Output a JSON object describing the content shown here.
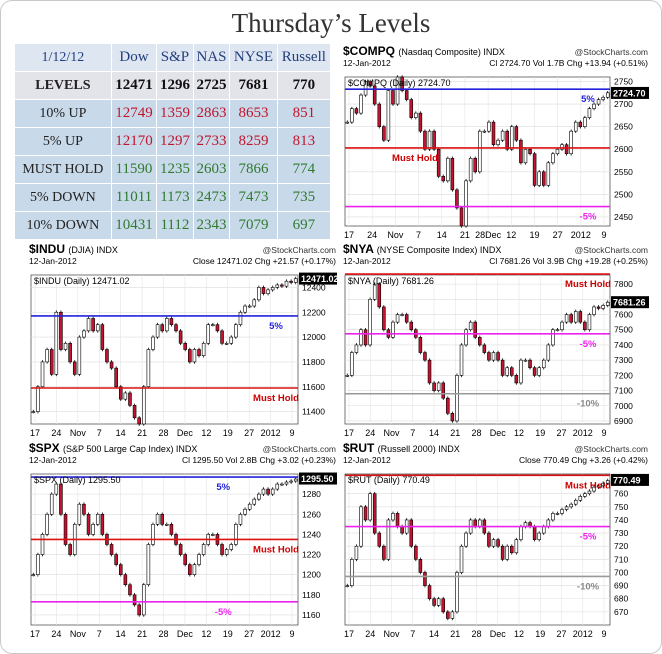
{
  "title": "Thursday’s Levels",
  "table": {
    "headers": [
      "1/12/12",
      "Dow",
      "S&P",
      "NAS",
      "NYSE",
      "Russell"
    ],
    "rows": [
      {
        "label": "LEVELS",
        "values": [
          "12471",
          "1296",
          "2725",
          "7681",
          "770"
        ]
      },
      {
        "label": "10% UP",
        "values": [
          "12749",
          "1359",
          "2863",
          "8653",
          "851"
        ]
      },
      {
        "label": "5% UP",
        "values": [
          "12170",
          "1297",
          "2733",
          "8259",
          "813"
        ]
      },
      {
        "label": "MUST HOLD",
        "values": [
          "11590",
          "1235",
          "2603",
          "7866",
          "774"
        ]
      },
      {
        "label": "5% DOWN",
        "values": [
          "11011",
          "1173",
          "2473",
          "7473",
          "735"
        ]
      },
      {
        "label": "10% DOWN",
        "values": [
          "10431",
          "1112",
          "2343",
          "7079",
          "697"
        ]
      }
    ]
  },
  "chart_data": [
    {
      "type": "candlestick",
      "symbol": "$COMPQ",
      "name": "(Nasdaq Composite)",
      "exchange": "INDX",
      "source": "@StockCharts.com",
      "date": "12-Jan-2012",
      "stats": "Cl 2724.70  Vol 1.7B  Chg +13.94 (+0.51%)",
      "legend": "$COMPQ (Daily) 2724.70",
      "last_label": "2724.70",
      "last": 2724.7,
      "ylim": [
        2430,
        2760
      ],
      "yticks": [
        2450,
        2500,
        2550,
        2600,
        2650,
        2700,
        2750
      ],
      "xticks": [
        "17",
        "24",
        "Nov",
        "7",
        "14",
        "21",
        "28Dec",
        "12",
        "19",
        "27",
        "2012",
        "9"
      ],
      "closes": [
        2660,
        2690,
        2680,
        2720,
        2750,
        2740,
        2700,
        2650,
        2620,
        2730,
        2700,
        2760,
        2730,
        2710,
        2670,
        2680,
        2640,
        2600,
        2640,
        2600,
        2540,
        2530,
        2580,
        2510,
        2470,
        2430,
        2530,
        2580,
        2550,
        2640,
        2640,
        2660,
        2610,
        2620,
        2640,
        2600,
        2650,
        2620,
        2570,
        2600,
        2590,
        2520,
        2550,
        2520,
        2570,
        2590,
        2600,
        2610,
        2590,
        2640,
        2660,
        2650,
        2670,
        2690,
        2700,
        2710,
        2715,
        2725
      ],
      "lines": [
        {
          "label": "5%",
          "value": 2733,
          "color": "#2222dd",
          "label_color": "#2222dd",
          "label_pos": "right"
        },
        {
          "label": "Must Hold",
          "value": 2603,
          "color": "#dd1111",
          "label_color": "#cc0000",
          "label_pos": "left"
        },
        {
          "label": "-5%",
          "value": 2473,
          "color": "#ee22ee",
          "label_color": "#ee22ee",
          "label_pos": "right"
        }
      ]
    },
    {
      "type": "candlestick",
      "symbol": "$INDU",
      "name": "(DJIA)",
      "exchange": "INDX",
      "source": "@StockCharts.com",
      "date": "12-Jan-2012",
      "stats": "Close 12471.02  Chg +21.57 (+0.17%)",
      "legend": "$INDU (Daily) 12471.02",
      "last_label": "12471.02",
      "last": 12471.02,
      "ylim": [
        11300,
        12500
      ],
      "yticks": [
        11400,
        11600,
        11800,
        12000,
        12200,
        12400
      ],
      "xticks": [
        "17",
        "24",
        "Nov",
        "7",
        "14",
        "21",
        "28",
        "Dec",
        "12",
        "19",
        "27",
        "2012",
        "9"
      ],
      "closes": [
        11400,
        11600,
        11800,
        11900,
        11700,
        12200,
        11900,
        11950,
        11800,
        11700,
        12000,
        12050,
        12150,
        12050,
        12100,
        11900,
        11800,
        11750,
        11600,
        11500,
        11550,
        11450,
        11350,
        11300,
        11600,
        11900,
        12000,
        12100,
        12050,
        12150,
        12100,
        12050,
        11950,
        11900,
        11800,
        11900,
        11850,
        11950,
        12100,
        12100,
        12050,
        11950,
        11950,
        12000,
        12100,
        12200,
        12250,
        12250,
        12300,
        12400,
        12350,
        12380,
        12400,
        12420,
        12410,
        12450,
        12440,
        12471
      ],
      "lines": [
        {
          "label": "5%",
          "value": 12170,
          "color": "#2222dd",
          "label_color": "#2222dd",
          "label_pos": "right"
        },
        {
          "label": "Must Hold",
          "value": 11590,
          "color": "#dd1111",
          "label_color": "#cc0000",
          "label_pos": "right"
        }
      ]
    },
    {
      "type": "candlestick",
      "symbol": "$NYA",
      "name": "(NYSE Composite Index)",
      "exchange": "INDX",
      "source": "@StockCharts.com",
      "date": "12-Jan-2012",
      "stats": "Cl 7681.26  Vol 3.9B  Chg +19.28 (+0.25%)",
      "legend": "$NYA (Daily) 7681.26",
      "last_label": "7681.26",
      "last": 7681.26,
      "ylim": [
        6880,
        7860
      ],
      "yticks": [
        6900,
        7000,
        7100,
        7200,
        7300,
        7400,
        7500,
        7600,
        7700,
        7800
      ],
      "xticks": [
        "17",
        "24",
        "Nov",
        "7",
        "14",
        "21",
        "28",
        "Dec",
        "12",
        "19",
        "27",
        "2012",
        "9"
      ],
      "closes": [
        7200,
        7350,
        7400,
        7500,
        7400,
        7700,
        7800,
        7650,
        7500,
        7450,
        7550,
        7600,
        7600,
        7550,
        7500,
        7450,
        7350,
        7300,
        7150,
        7100,
        7150,
        7050,
        6950,
        6900,
        7200,
        7400,
        7500,
        7550,
        7450,
        7400,
        7350,
        7300,
        7350,
        7300,
        7200,
        7250,
        7200,
        7150,
        7300,
        7300,
        7250,
        7200,
        7250,
        7300,
        7400,
        7500,
        7500,
        7550,
        7600,
        7550,
        7620,
        7550,
        7500,
        7600,
        7650,
        7640,
        7660,
        7681
      ],
      "lines": [
        {
          "label": "Must Hold",
          "value": 7866,
          "color": "#dd1111",
          "label_color": "#cc0000",
          "label_pos": "right"
        },
        {
          "label": "-5%",
          "value": 7473,
          "color": "#ee22ee",
          "label_color": "#ee22ee",
          "label_pos": "right"
        },
        {
          "label": "-10%",
          "value": 7079,
          "color": "#999999",
          "label_color": "#888888",
          "label_pos": "right"
        }
      ]
    },
    {
      "type": "candlestick",
      "symbol": "$SPX",
      "name": "(S&P 500 Large Cap Index)",
      "exchange": "INDX",
      "source": "@StockCharts.com",
      "date": "12-Jan-2012",
      "stats": "Cl 1295.50  Vol 2.8B  Chg +3.02 (+0.23%)",
      "legend": "$SPX (Daily) 1295.50",
      "last_label": "1295.50",
      "last": 1295.5,
      "ylim": [
        1150,
        1300
      ],
      "yticks": [
        1160,
        1180,
        1200,
        1220,
        1240,
        1260,
        1280
      ],
      "xticks": [
        "17",
        "24",
        "Nov",
        "7",
        "14",
        "21",
        "28",
        "Dec",
        "12",
        "19",
        "27",
        "2012",
        "9"
      ],
      "closes": [
        1200,
        1220,
        1240,
        1260,
        1280,
        1290,
        1260,
        1230,
        1220,
        1250,
        1270,
        1260,
        1240,
        1250,
        1260,
        1240,
        1230,
        1220,
        1210,
        1200,
        1190,
        1180,
        1170,
        1160,
        1190,
        1230,
        1250,
        1260,
        1250,
        1250,
        1240,
        1230,
        1220,
        1210,
        1200,
        1210,
        1220,
        1230,
        1240,
        1240,
        1230,
        1220,
        1225,
        1230,
        1250,
        1260,
        1265,
        1270,
        1275,
        1280,
        1285,
        1280,
        1285,
        1290,
        1290,
        1292,
        1293,
        1295
      ],
      "lines": [
        {
          "label": "5%",
          "value": 1297,
          "color": "#2222dd",
          "label_color": "#2222dd",
          "label_pos": "mid"
        },
        {
          "label": "Must Hold",
          "value": 1235,
          "color": "#dd1111",
          "label_color": "#cc0000",
          "label_pos": "right"
        },
        {
          "label": "-5%",
          "value": 1173,
          "color": "#ee22ee",
          "label_color": "#ee22ee",
          "label_pos": "mid"
        }
      ]
    },
    {
      "type": "candlestick",
      "symbol": "$RUT",
      "name": "(Russell 2000)",
      "exchange": "INDX",
      "source": "@StockCharts.com",
      "date": "12-Jan-2012",
      "stats": "Close 770.49  Chg +3.26 (+0.42%)",
      "legend": "$RUT (Daily) 770.49",
      "last_label": "770.49",
      "last": 770.49,
      "ylim": [
        660,
        775
      ],
      "yticks": [
        670,
        680,
        690,
        700,
        710,
        720,
        730,
        740,
        750,
        760
      ],
      "xticks": [
        "17",
        "24",
        "Nov",
        "7",
        "14",
        "21",
        "28",
        "Dec",
        "12",
        "19",
        "27",
        "2012",
        "9"
      ],
      "closes": [
        690,
        710,
        720,
        750,
        740,
        760,
        730,
        720,
        710,
        740,
        745,
        735,
        730,
        740,
        720,
        710,
        700,
        690,
        680,
        675,
        680,
        670,
        665,
        670,
        700,
        720,
        730,
        740,
        735,
        740,
        730,
        720,
        725,
        720,
        710,
        720,
        715,
        725,
        735,
        738,
        735,
        725,
        730,
        735,
        740,
        745,
        745,
        748,
        750,
        752,
        755,
        758,
        760,
        762,
        765,
        766,
        768,
        770
      ],
      "lines": [
        {
          "label": "Must Hold",
          "value": 774,
          "color": "#dd1111",
          "label_color": "#cc0000",
          "label_pos": "right"
        },
        {
          "label": "-5%",
          "value": 735,
          "color": "#ee22ee",
          "label_color": "#ee22ee",
          "label_pos": "right"
        },
        {
          "label": "-10%",
          "value": 697,
          "color": "#999999",
          "label_color": "#888888",
          "label_pos": "right"
        }
      ]
    }
  ]
}
